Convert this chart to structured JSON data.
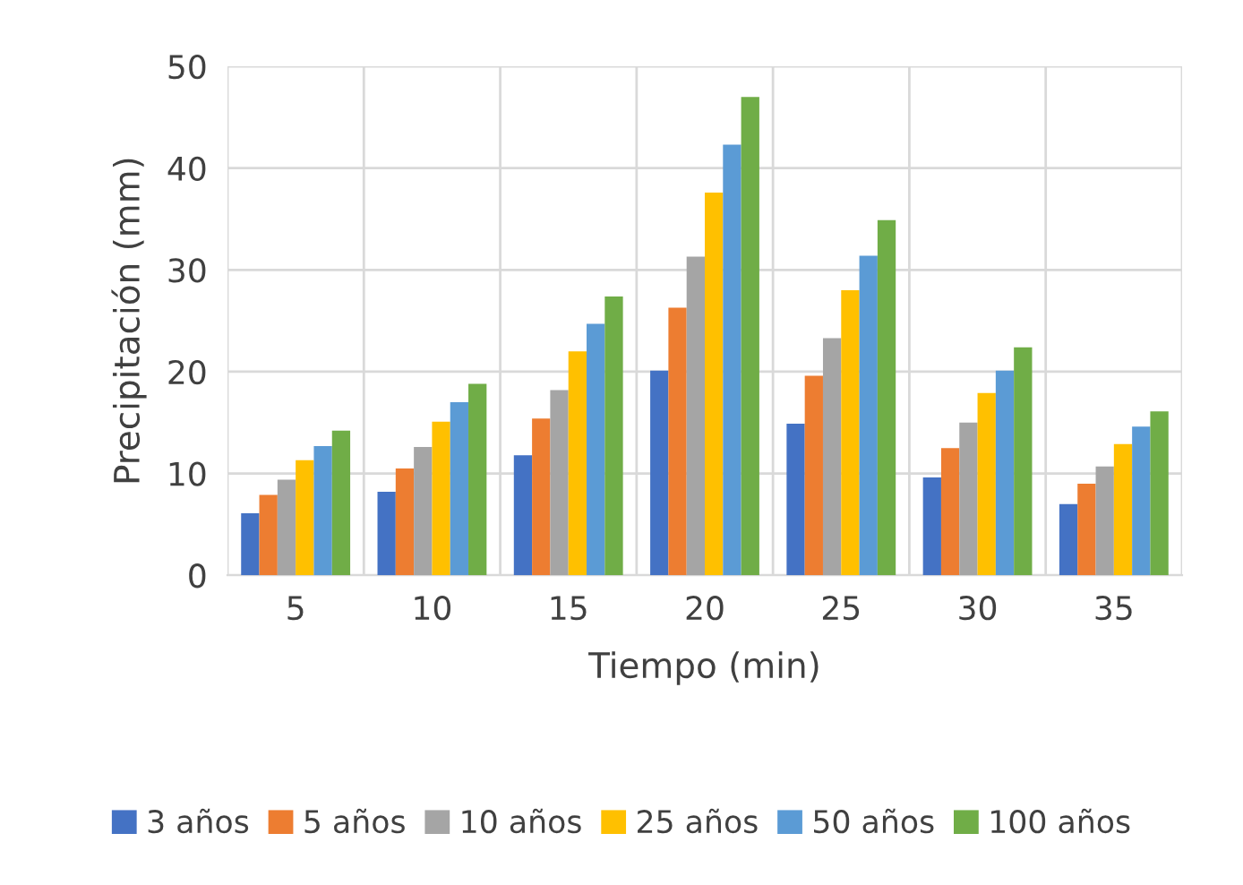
{
  "chart_data": {
    "type": "bar",
    "xlabel": "Tiempo (min)",
    "ylabel": "Precipitación (mm)",
    "categories": [
      "5",
      "10",
      "15",
      "20",
      "25",
      "30",
      "35"
    ],
    "series": [
      {
        "name": "3 años",
        "color": "#4472c4",
        "values": [
          6.1,
          8.2,
          11.8,
          20.1,
          14.9,
          9.6,
          7.0
        ]
      },
      {
        "name": "5 años",
        "color": "#ed7d31",
        "values": [
          7.9,
          10.5,
          15.4,
          26.3,
          19.6,
          12.5,
          9.0
        ]
      },
      {
        "name": "10 años",
        "color": "#a5a5a5",
        "values": [
          9.4,
          12.6,
          18.2,
          31.3,
          23.3,
          15.0,
          10.7
        ]
      },
      {
        "name": "25 años",
        "color": "#ffc000",
        "values": [
          11.3,
          15.1,
          22.0,
          37.6,
          28.0,
          17.9,
          12.9
        ]
      },
      {
        "name": "50 años",
        "color": "#5b9bd5",
        "values": [
          12.7,
          17.0,
          24.7,
          42.3,
          31.4,
          20.1,
          14.6
        ]
      },
      {
        "name": "100 años",
        "color": "#70ad47",
        "values": [
          14.2,
          18.8,
          27.4,
          47.0,
          34.9,
          22.4,
          16.1
        ]
      }
    ],
    "ylim": [
      0,
      50
    ],
    "yticks": [
      0,
      10,
      20,
      30,
      40,
      50
    ],
    "grid": true,
    "legend": "bottom"
  }
}
